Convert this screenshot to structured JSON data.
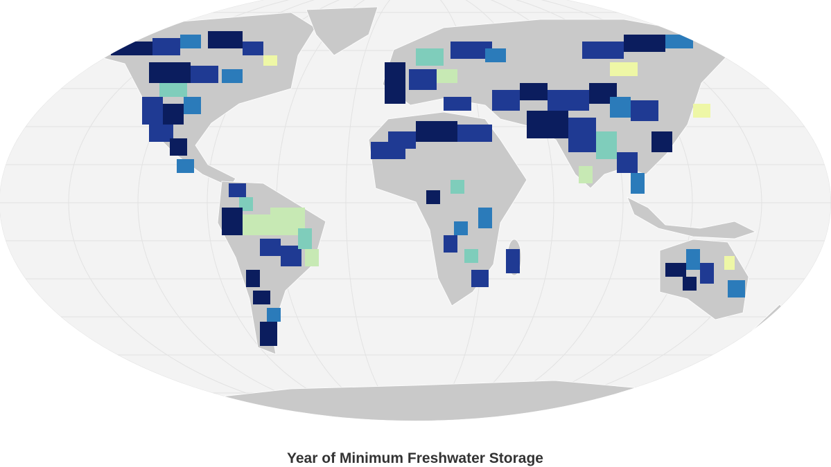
{
  "title": "Year of Minimum Freshwater Storage"
}
